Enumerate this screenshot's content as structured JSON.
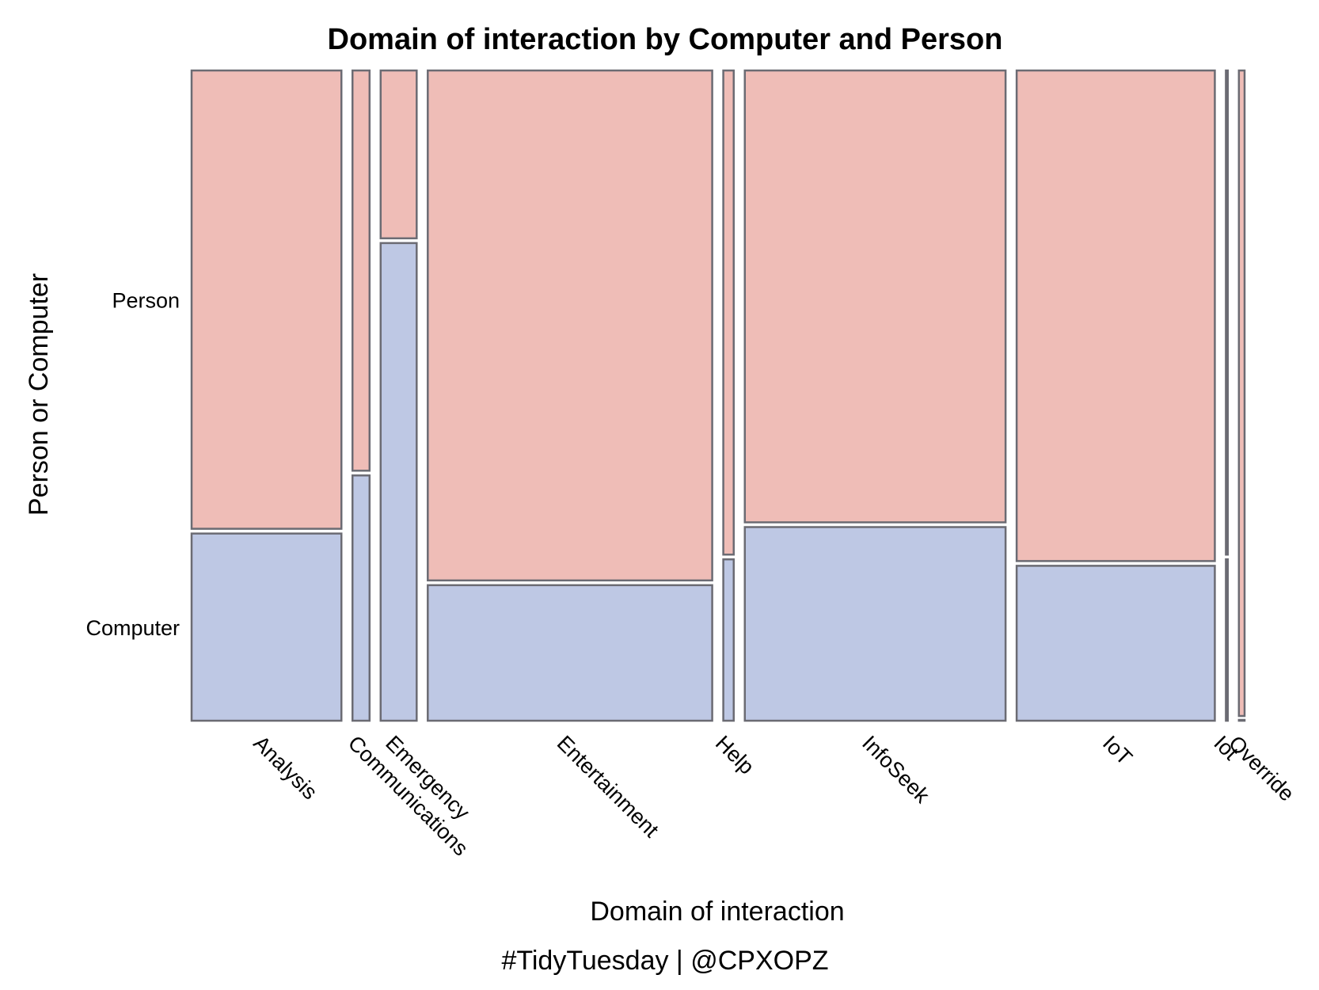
{
  "chart_data": {
    "type": "mosaic",
    "title": "Domain of interaction by Computer and Person",
    "xlabel": "Domain of interaction",
    "ylabel": "Person or Computer",
    "caption": "#TidyTuesday | @CPXOPZ",
    "y_categories": [
      "Computer",
      "Person"
    ],
    "colors": {
      "Person": "#EFBDB7",
      "Computer": "#BEC8E4",
      "border": "#6B6B73"
    },
    "categories": [
      "Analysis",
      "Communications",
      "Emergency",
      "Entertainment",
      "Help",
      "InfoSeek",
      "IoT",
      "Iot",
      "Override"
    ],
    "col_share": [
      0.158,
      0.018,
      0.038,
      0.3,
      0.011,
      0.275,
      0.209,
      0.002,
      0.006
    ],
    "computer_share": [
      0.29,
      0.38,
      0.74,
      0.21,
      0.25,
      0.3,
      0.24,
      0.25,
      0.0
    ],
    "grid": false,
    "legend": "none"
  }
}
